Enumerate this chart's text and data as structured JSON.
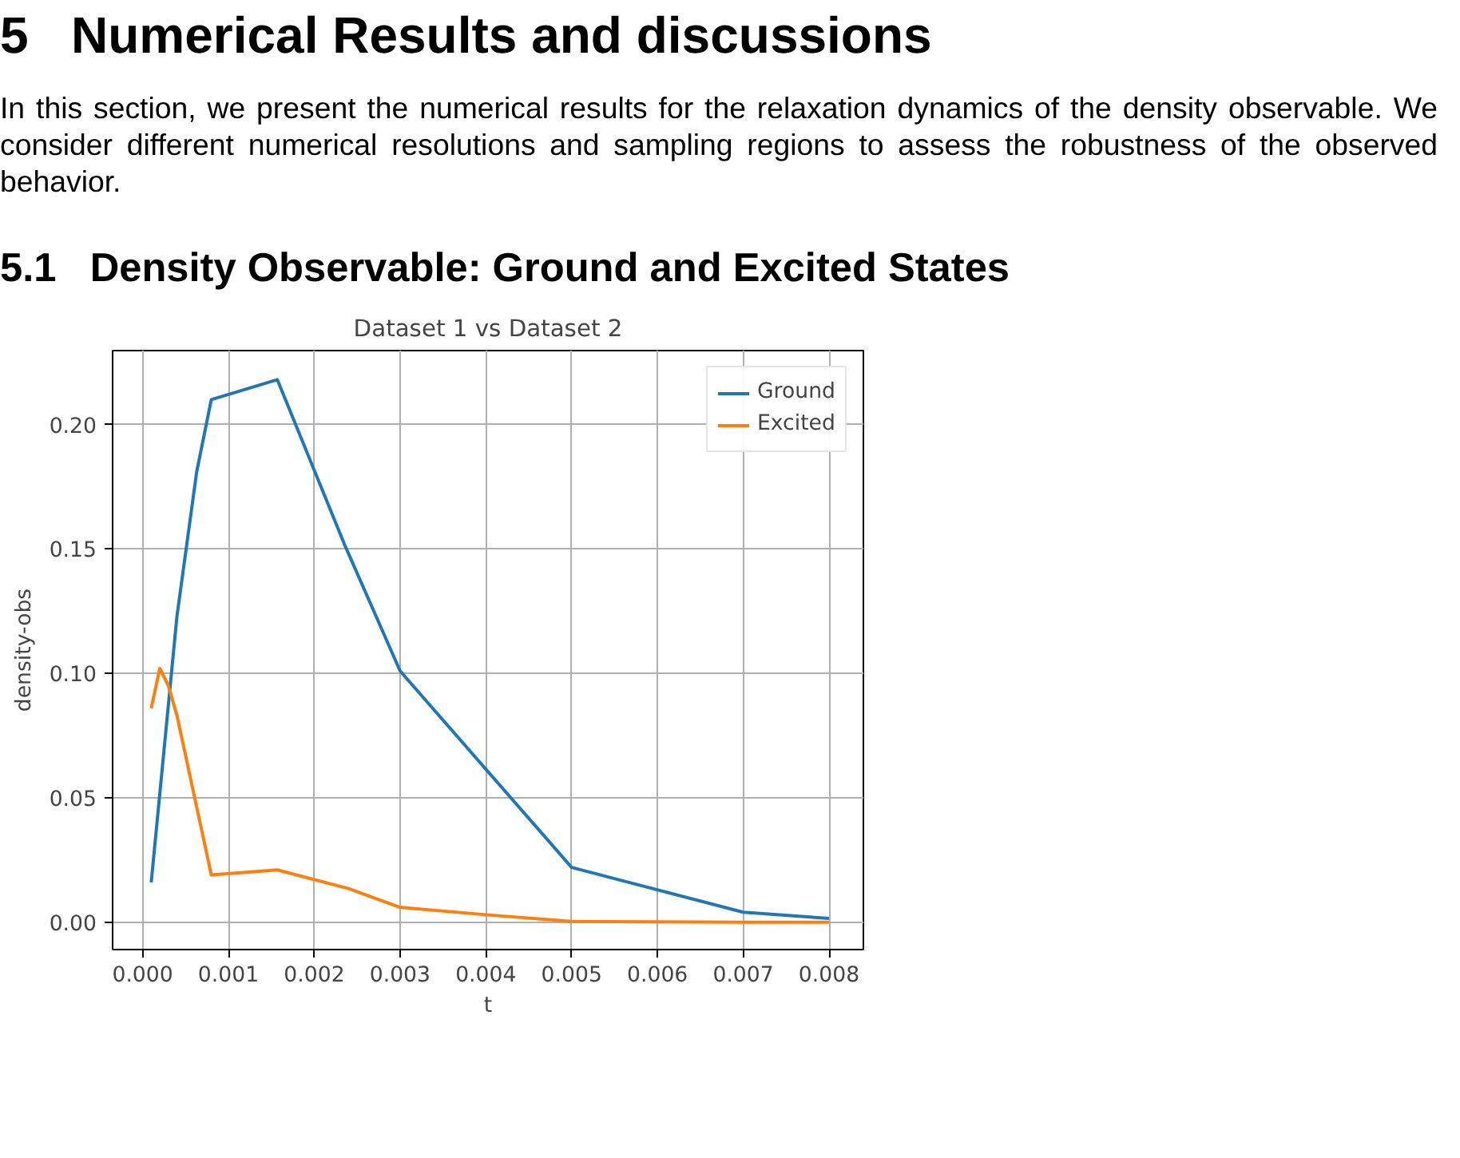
{
  "chart_data": {
    "type": "line",
    "title": "Dataset 1 vs Dataset 2",
    "xlabel": "t",
    "ylabel": "density-obs",
    "annotations": [
      "5   Numerical Results and discussions",
      "In this section, we present the numerical results for the relaxation dynamics of the density observable. We consider different numerical resolutions and sampling regions to assess the robustness of the observed behavior.",
      "5.1   Density Observable: Ground and Excited States"
    ],
    "series": [
      {
        "name": "Ground",
        "color": "#1f77b4",
        "x": [
          0.0001,
          0.0004,
          0.00063,
          0.0008,
          0.00157,
          0.00235,
          0.003,
          0.005,
          0.007,
          0.008
        ],
        "values": [
          0.016,
          0.123,
          0.181,
          0.21,
          0.218,
          0.152,
          0.101,
          0.022,
          0.004,
          0.0015
        ]
      },
      {
        "name": "Excited",
        "color": "#ff7f0e",
        "x": [
          0.0001,
          0.0002,
          0.0003,
          0.0004,
          0.0008,
          0.00157,
          0.0024,
          0.003,
          0.004,
          0.005,
          0.007,
          0.008
        ],
        "values": [
          0.086,
          0.102,
          0.095,
          0.083,
          0.019,
          0.021,
          0.0135,
          0.006,
          0.003,
          0.0003,
          0.0,
          0.0
        ]
      }
    ],
    "xlim": [
      -0.00035,
      0.0084
    ],
    "ylim": [
      -0.011,
      0.2297
    ],
    "xticks": [
      {
        "value": 0,
        "label": "0.000"
      },
      0.001,
      0.002,
      0.003,
      0.004,
      0.005,
      0.006,
      0.007,
      0.008
    ],
    "yticks": [
      {
        "value": 0,
        "label": "0.00"
      },
      0.05,
      {
        "value": 0.1,
        "label": "0.10"
      },
      0.15,
      {
        "value": 0.2,
        "label": "0.20"
      }
    ],
    "grid": true,
    "legend": "top right",
    "marker": "none",
    "line_style": "solid"
  }
}
